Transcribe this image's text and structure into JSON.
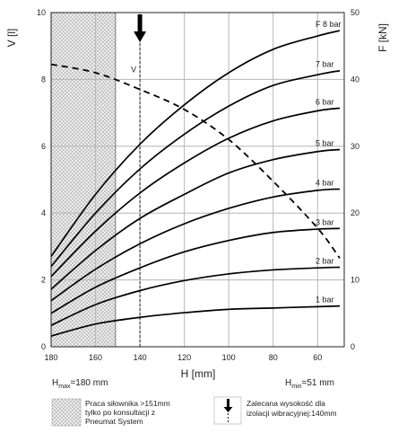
{
  "chart_data": {
    "type": "line",
    "xlabel": "H [mm]",
    "ylabel_left": "V [l]",
    "ylabel_right": "F [kN]",
    "x_ticks": [
      180,
      160,
      140,
      120,
      100,
      80,
      60
    ],
    "xlim": [
      180,
      48
    ],
    "y_left_ticks": [
      0,
      2,
      4,
      6,
      8,
      10
    ],
    "ylim_left": [
      0,
      10
    ],
    "y_right_ticks": [
      0,
      10,
      20,
      30,
      40,
      50
    ],
    "ylim_right": [
      0,
      50
    ],
    "grid": true,
    "x_reversed": true,
    "series": [
      {
        "name": "1 bar",
        "axis": "right",
        "x": [
          180,
          160,
          140,
          120,
          100,
          80,
          60,
          50
        ],
        "values": [
          1.6,
          3.4,
          4.4,
          5.1,
          5.6,
          5.8,
          6.0,
          6.1
        ]
      },
      {
        "name": "2 bar",
        "axis": "right",
        "x": [
          180,
          160,
          140,
          120,
          100,
          80,
          60,
          50
        ],
        "values": [
          3.2,
          6.3,
          8.4,
          9.9,
          10.9,
          11.5,
          11.8,
          11.9
        ]
      },
      {
        "name": "3 bar",
        "axis": "right",
        "x": [
          180,
          160,
          140,
          120,
          100,
          80,
          60,
          50
        ],
        "values": [
          5.0,
          8.9,
          11.8,
          14.2,
          15.9,
          17.1,
          17.6,
          17.7
        ]
      },
      {
        "name": "4 bar",
        "axis": "right",
        "x": [
          180,
          160,
          140,
          120,
          100,
          80,
          60,
          50
        ],
        "values": [
          6.9,
          11.6,
          15.4,
          18.4,
          20.7,
          22.4,
          23.4,
          23.6
        ]
      },
      {
        "name": "5 bar",
        "axis": "right",
        "x": [
          180,
          160,
          140,
          120,
          100,
          80,
          60,
          50
        ],
        "values": [
          8.6,
          14.4,
          19.2,
          22.8,
          26.0,
          28.0,
          29.2,
          29.5
        ]
      },
      {
        "name": "6 bar",
        "axis": "right",
        "x": [
          180,
          160,
          140,
          120,
          100,
          80,
          60,
          50
        ],
        "values": [
          10.5,
          17.3,
          23.0,
          27.5,
          31.2,
          33.8,
          35.3,
          35.7
        ]
      },
      {
        "name": "7 bar",
        "axis": "right",
        "x": [
          180,
          160,
          140,
          120,
          100,
          80,
          60,
          50
        ],
        "values": [
          12.0,
          20.0,
          26.6,
          31.8,
          36.0,
          39.1,
          40.7,
          41.3
        ]
      },
      {
        "name": "F 8 bar",
        "axis": "right",
        "x": [
          180,
          160,
          140,
          120,
          100,
          80,
          60,
          50
        ],
        "values": [
          13.5,
          22.8,
          30.3,
          36.2,
          41.0,
          44.5,
          46.5,
          47.3
        ]
      },
      {
        "name": "V",
        "axis": "left",
        "style": "dashed",
        "x": [
          180,
          160,
          140,
          120,
          100,
          80,
          60,
          50
        ],
        "values": [
          8.45,
          8.2,
          7.7,
          7.1,
          6.2,
          4.95,
          3.55,
          2.65
        ]
      }
    ],
    "marker_label": "V",
    "recommended_height_mm": 140,
    "h_max_label": "H",
    "h_max_sub": "max",
    "h_max_value": "=180 mm",
    "h_min_label": "H",
    "h_min_sub": "min",
    "h_min_value": "=51 mm",
    "consultation_limit_mm": 151
  },
  "legend": {
    "hatched": [
      "Praca siłownika >151mm",
      "tylko po konsultacji z",
      "Pneumat System"
    ],
    "arrow": [
      "Zalecana wysokość dla",
      "izolacji wibracyjnej:140mm"
    ]
  }
}
